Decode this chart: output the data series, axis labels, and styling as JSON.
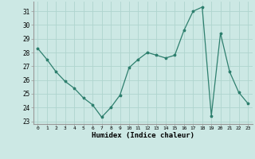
{
  "x": [
    0,
    1,
    2,
    3,
    4,
    5,
    6,
    7,
    8,
    9,
    10,
    11,
    12,
    13,
    14,
    15,
    16,
    17,
    18,
    19,
    20,
    21,
    22,
    23
  ],
  "y": [
    28.3,
    27.5,
    26.6,
    25.9,
    25.4,
    24.7,
    24.2,
    23.3,
    24.0,
    24.9,
    26.9,
    27.5,
    28.0,
    27.8,
    27.6,
    27.8,
    29.6,
    31.0,
    31.3,
    23.4,
    29.4,
    26.6,
    25.1,
    24.3
  ],
  "line_color": "#2e7f6e",
  "marker": "*",
  "bg_color": "#cce8e4",
  "grid_color": "#afd4ce",
  "xlabel": "Humidex (Indice chaleur)",
  "ylim": [
    22.8,
    31.7
  ],
  "xlim": [
    -0.5,
    23.5
  ],
  "yticks": [
    23,
    24,
    25,
    26,
    27,
    28,
    29,
    30,
    31
  ],
  "xticks": [
    0,
    1,
    2,
    3,
    4,
    5,
    6,
    7,
    8,
    9,
    10,
    11,
    12,
    13,
    14,
    15,
    16,
    17,
    18,
    19,
    20,
    21,
    22,
    23
  ]
}
